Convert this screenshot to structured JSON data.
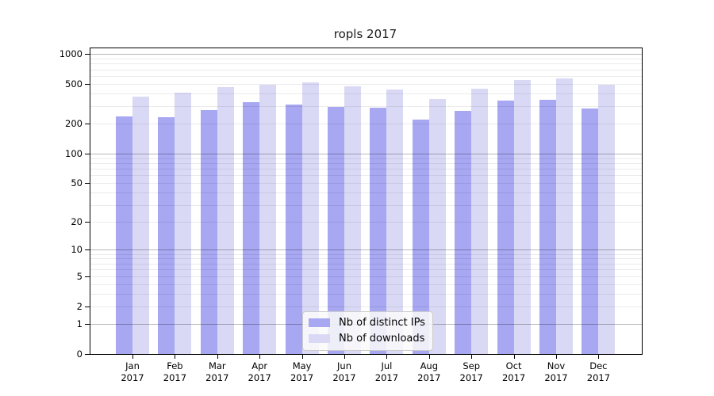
{
  "chart_data": {
    "type": "bar",
    "title": "ropls 2017",
    "categories": [
      "Jan 2017",
      "Feb 2017",
      "Mar 2017",
      "Apr 2017",
      "May 2017",
      "Jun 2017",
      "Jul 2017",
      "Aug 2017",
      "Sep 2017",
      "Oct 2017",
      "Nov 2017",
      "Dec 2017"
    ],
    "x_tick_top": [
      "Jan",
      "Feb",
      "Mar",
      "Apr",
      "May",
      "Jun",
      "Jul",
      "Aug",
      "Sep",
      "Oct",
      "Nov",
      "Dec"
    ],
    "x_tick_bottom": "2017",
    "series": [
      {
        "name": "Nb of distinct IPs",
        "color_key": "bar_dark",
        "values": [
          235,
          231,
          272,
          327,
          310,
          293,
          287,
          220,
          270,
          339,
          346,
          282
        ]
      },
      {
        "name": "Nb of downloads",
        "color_key": "bar_light",
        "values": [
          372,
          407,
          463,
          489,
          517,
          472,
          439,
          352,
          450,
          546,
          567,
          489
        ]
      }
    ],
    "y_scale": "log1p",
    "ylim": [
      0,
      1000
    ],
    "y_ticks": [
      1000,
      500,
      200,
      100,
      50,
      20,
      10,
      5,
      2,
      1,
      0
    ],
    "y_gridlines_major": [
      1,
      10,
      100,
      1000
    ],
    "y_gridlines_minor": [
      2,
      3,
      4,
      5,
      6,
      7,
      8,
      9,
      20,
      30,
      40,
      50,
      60,
      70,
      80,
      90,
      200,
      300,
      400,
      500,
      600,
      700,
      800,
      900
    ],
    "grid": true,
    "legend_position": "lower center"
  },
  "colors": {
    "bar_dark": "#a7a7f2",
    "bar_light": "#d9d9f6",
    "grid_major": "rgba(0,0,0,0.28)",
    "grid_minor": "rgba(0,0,0,0.08)",
    "axis": "#000000",
    "legend_bg": "rgba(250,250,250,0.85)",
    "legend_border": "#cccccc",
    "background": "#ffffff"
  }
}
